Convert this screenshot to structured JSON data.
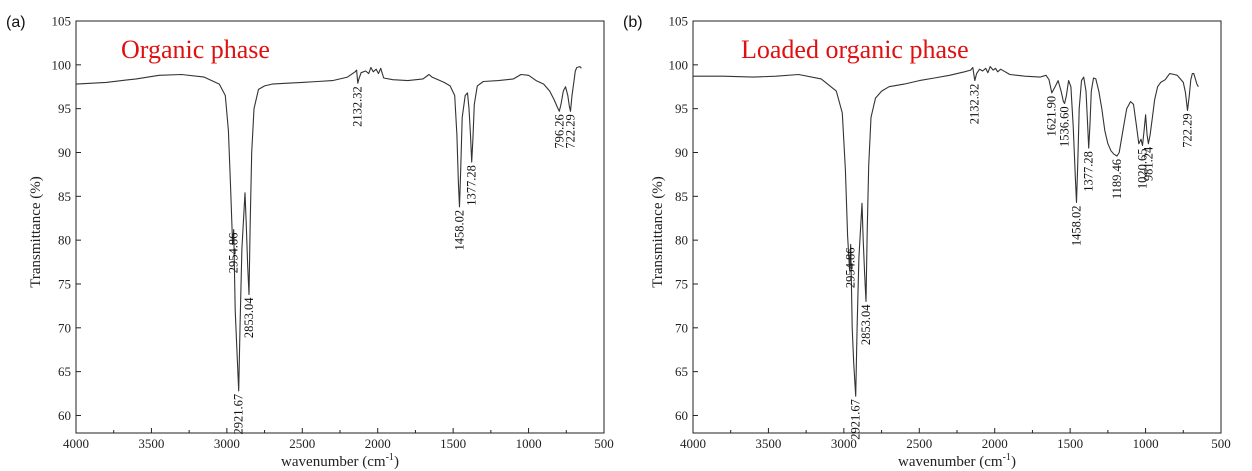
{
  "chart_data": [
    {
      "type": "line",
      "panel_label": "(a)",
      "title": "Organic phase",
      "xlabel": "wavenumber (cm",
      "xlabel_sup": "-1",
      "xlabel_close": ")",
      "ylabel": "Transmittance (%)",
      "xlim": [
        4000,
        500
      ],
      "ylim": [
        58,
        105
      ],
      "xticks": [
        4000,
        3500,
        3000,
        2500,
        2000,
        1500,
        1000,
        500
      ],
      "yticks": [
        60,
        65,
        70,
        75,
        80,
        85,
        90,
        95,
        100,
        105
      ],
      "color": "#333333",
      "series": [
        {
          "x": [
            4000,
            3800,
            3600,
            3450,
            3300,
            3150,
            3050,
            3010,
            2990,
            2975,
            2962,
            2954.86,
            2945,
            2935,
            2921.67,
            2912,
            2900,
            2880,
            2872,
            2862,
            2853.04,
            2845,
            2835,
            2820,
            2790,
            2750,
            2700,
            2600,
            2500,
            2400,
            2300,
            2200,
            2150,
            2140,
            2132.32,
            2125,
            2110,
            2080,
            2060,
            2045,
            2030,
            2010,
            1995,
            1980,
            1960,
            1900,
            1800,
            1700,
            1660,
            1640,
            1600,
            1560,
            1520,
            1490,
            1475,
            1465,
            1458.02,
            1450,
            1440,
            1420,
            1405,
            1395,
            1385,
            1377.28,
            1369,
            1360,
            1340,
            1300,
            1200,
            1100,
            1050,
            1000,
            950,
            900,
            860,
            830,
            810,
            796.26,
            785,
            770,
            755,
            740,
            730,
            722.29,
            712,
            700,
            690,
            680,
            660,
            650
          ],
          "y": [
            97.8,
            98.0,
            98.4,
            98.8,
            98.9,
            98.6,
            97.8,
            96.5,
            92.5,
            86.0,
            79.5,
            81.2,
            72.0,
            68.0,
            62.8,
            70.5,
            79.0,
            85.4,
            82.0,
            77.0,
            73.8,
            82.0,
            90.0,
            95.0,
            97.2,
            97.6,
            97.8,
            97.9,
            98.0,
            98.1,
            98.2,
            98.6,
            99.2,
            99.4,
            97.9,
            98.4,
            99.1,
            99.3,
            99.0,
            99.7,
            99.2,
            99.5,
            99.0,
            99.6,
            98.5,
            98.3,
            98.2,
            98.4,
            98.9,
            98.6,
            98.3,
            98.0,
            97.6,
            96.5,
            92.0,
            86.5,
            83.8,
            88.0,
            94.0,
            96.5,
            96.8,
            95.0,
            92.0,
            88.9,
            91.5,
            95.5,
            97.6,
            98.1,
            98.2,
            98.4,
            98.9,
            98.8,
            98.2,
            97.8,
            97.0,
            96.0,
            95.2,
            94.7,
            95.5,
            97.0,
            97.5,
            96.5,
            95.3,
            94.7,
            96.5,
            98.0,
            99.3,
            99.7,
            99.8,
            99.6
          ]
        }
      ],
      "peak_labels": [
        {
          "text": "2954.86",
          "x": 2954.86,
          "y": 81.2
        },
        {
          "text": "2853.04",
          "x": 2853.04,
          "y": 73.8
        },
        {
          "text": "2921.67",
          "x": 2921.67,
          "y": 62.8
        },
        {
          "text": "2132.32",
          "x": 2132.32,
          "y": 97.9
        },
        {
          "text": "1458.02",
          "x": 1458.02,
          "y": 83.8
        },
        {
          "text": "1377.28",
          "x": 1377.28,
          "y": 88.9
        },
        {
          "text": "796.26",
          "x": 796.26,
          "y": 94.7
        },
        {
          "text": "722.29",
          "x": 722.29,
          "y": 94.7
        }
      ]
    },
    {
      "type": "line",
      "panel_label": "(b)",
      "title": "Loaded organic phase",
      "xlabel": "wavenumber (cm",
      "xlabel_sup": "-1",
      "xlabel_close": ")",
      "ylabel": "Transmittance (%)",
      "xlim": [
        4000,
        500
      ],
      "ylim": [
        58,
        105
      ],
      "xticks": [
        4000,
        3500,
        3000,
        2500,
        2000,
        1500,
        1000,
        500
      ],
      "yticks": [
        60,
        65,
        70,
        75,
        80,
        85,
        90,
        95,
        100,
        105
      ],
      "color": "#333333",
      "series": [
        {
          "x": [
            4000,
            3800,
            3600,
            3450,
            3300,
            3150,
            3050,
            3010,
            2990,
            2975,
            2962,
            2954.86,
            2945,
            2935,
            2921.67,
            2912,
            2900,
            2880,
            2872,
            2862,
            2853.04,
            2845,
            2835,
            2820,
            2790,
            2750,
            2700,
            2600,
            2500,
            2400,
            2300,
            2200,
            2160,
            2145,
            2132.32,
            2120,
            2100,
            2080,
            2060,
            2045,
            2030,
            2010,
            1995,
            1980,
            1960,
            1900,
            1800,
            1700,
            1660,
            1640,
            1621.9,
            1600,
            1580,
            1560,
            1545,
            1536.6,
            1525,
            1510,
            1495,
            1480,
            1465,
            1458.02,
            1450,
            1440,
            1425,
            1410,
            1395,
            1385,
            1377.28,
            1369,
            1360,
            1345,
            1330,
            1310,
            1290,
            1270,
            1250,
            1230,
            1210,
            1189.46,
            1175,
            1150,
            1125,
            1100,
            1080,
            1060,
            1045,
            1030,
            1020.65,
            1010,
            1000,
            990,
            981.24,
            970,
            955,
            940,
            920,
            900,
            870,
            840,
            810,
            790,
            770,
            750,
            735,
            722.29,
            710,
            700,
            690,
            680,
            660,
            650
          ],
          "y": [
            98.7,
            98.7,
            98.6,
            98.7,
            98.9,
            98.4,
            97.0,
            94.5,
            88.0,
            80.5,
            76.5,
            79.5,
            70.0,
            66.0,
            62.2,
            70.0,
            78.0,
            84.2,
            80.0,
            76.0,
            73.0,
            81.0,
            88.5,
            94.0,
            96.2,
            97.0,
            97.5,
            97.8,
            98.2,
            98.5,
            98.8,
            99.2,
            99.4,
            99.7,
            98.2,
            99.0,
            99.5,
            99.3,
            99.6,
            99.1,
            99.8,
            99.4,
            99.6,
            99.2,
            99.5,
            98.9,
            98.7,
            98.6,
            98.8,
            98.3,
            96.8,
            97.5,
            98.2,
            97.0,
            95.8,
            95.6,
            96.5,
            98.2,
            97.5,
            93.0,
            87.0,
            84.3,
            88.5,
            95.0,
            98.2,
            98.6,
            97.0,
            93.5,
            90.5,
            93.0,
            97.0,
            98.5,
            98.4,
            97.0,
            95.0,
            92.5,
            91.0,
            90.2,
            89.8,
            89.6,
            90.0,
            92.5,
            95.0,
            95.8,
            95.5,
            93.0,
            91.0,
            91.5,
            90.8,
            92.5,
            94.3,
            92.0,
            91.0,
            92.0,
            94.0,
            96.0,
            97.5,
            98.0,
            98.3,
            99.0,
            98.9,
            98.8,
            98.4,
            98.0,
            96.8,
            94.8,
            96.5,
            98.3,
            99.0,
            99.0,
            97.8,
            97.5
          ]
        }
      ],
      "peak_labels": [
        {
          "text": "2954.86",
          "x": 2954.86,
          "y": 79.5
        },
        {
          "text": "2853.04",
          "x": 2853.04,
          "y": 73.0
        },
        {
          "text": "2921.67",
          "x": 2921.67,
          "y": 62.2
        },
        {
          "text": "2132.32",
          "x": 2132.32,
          "y": 98.2
        },
        {
          "text": "1621.90",
          "x": 1621.9,
          "y": 96.8
        },
        {
          "text": "1536.60",
          "x": 1536.6,
          "y": 95.6
        },
        {
          "text": "1458.02",
          "x": 1458.02,
          "y": 84.3
        },
        {
          "text": "1377.28",
          "x": 1377.28,
          "y": 90.5
        },
        {
          "text": "1189.46",
          "x": 1189.46,
          "y": 89.6
        },
        {
          "text": "1020.65",
          "x": 1020.65,
          "y": 90.8
        },
        {
          "text": "981.24",
          "x": 981.24,
          "y": 91.0
        },
        {
          "text": "722.29",
          "x": 722.29,
          "y": 94.8
        }
      ]
    }
  ]
}
